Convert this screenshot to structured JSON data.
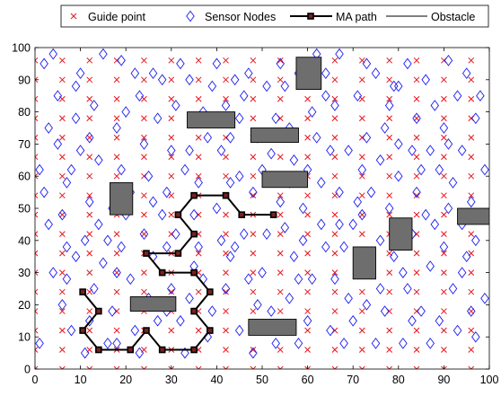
{
  "chart_data": {
    "type": "scatter",
    "xlim": [
      0,
      100
    ],
    "ylim": [
      0,
      100
    ],
    "xticks": [
      "0",
      "10",
      "20",
      "30",
      "40",
      "50",
      "60",
      "70",
      "80",
      "90",
      "100"
    ],
    "yticks": [
      "0",
      "10",
      "20",
      "30",
      "40",
      "50",
      "60",
      "70",
      "80",
      "90",
      "100"
    ],
    "grid": false,
    "legend_position": "top",
    "legend": [
      {
        "label": "Guide point",
        "marker": "x",
        "color": "#e8141b"
      },
      {
        "label": "Sensor Nodes",
        "marker": "diamond",
        "color": "#1c1cf0"
      },
      {
        "label": "MA path",
        "marker": "square-line",
        "color": "#000000"
      },
      {
        "label": "Obstacle",
        "marker": "line",
        "color": "#000000"
      }
    ],
    "guide_points_spacing": 6,
    "guide_points_color": "#e8141b",
    "sensor_color": "#1c1cf0",
    "obstacle_fill": "#6e6e6e",
    "obstacles": [
      {
        "x": [
          16.5,
          21.5
        ],
        "y": [
          48,
          58
        ]
      },
      {
        "x": [
          33.5,
          44
        ],
        "y": [
          75,
          80
        ]
      },
      {
        "x": [
          47.5,
          58
        ],
        "y": [
          70.5,
          75
        ]
      },
      {
        "x": [
          50,
          60
        ],
        "y": [
          56.5,
          61.5
        ]
      },
      {
        "x": [
          57.5,
          63
        ],
        "y": [
          87,
          97
        ]
      },
      {
        "x": [
          21,
          31
        ],
        "y": [
          18,
          22.5
        ]
      },
      {
        "x": [
          47,
          57.5
        ],
        "y": [
          10.5,
          15.5
        ]
      },
      {
        "x": [
          70,
          75
        ],
        "y": [
          28,
          38
        ]
      },
      {
        "x": [
          78,
          83
        ],
        "y": [
          37,
          47
        ]
      },
      {
        "x": [
          93,
          103
        ],
        "y": [
          45,
          50
        ]
      }
    ],
    "ma_path": [
      [
        10.5,
        24
      ],
      [
        14,
        18
      ],
      [
        10.5,
        12
      ],
      [
        14,
        6
      ],
      [
        21,
        6
      ],
      [
        24.5,
        12
      ],
      [
        28,
        6
      ],
      [
        35,
        6
      ],
      [
        38.5,
        12
      ],
      [
        35,
        18
      ],
      [
        38.5,
        24
      ],
      [
        35,
        30
      ],
      [
        28,
        30
      ],
      [
        24.5,
        36
      ],
      [
        31.5,
        36
      ],
      [
        35,
        42
      ],
      [
        31.5,
        48
      ],
      [
        35,
        54
      ],
      [
        42,
        54
      ],
      [
        45.5,
        48
      ],
      [
        52.5,
        48
      ]
    ],
    "sensor_nodes": [
      [
        2,
        95
      ],
      [
        5,
        70
      ],
      [
        9,
        88
      ],
      [
        12,
        52
      ],
      [
        15,
        33
      ],
      [
        18,
        75
      ],
      [
        22,
        12
      ],
      [
        25,
        60
      ],
      [
        28,
        90
      ],
      [
        31,
        42
      ],
      [
        34,
        22
      ],
      [
        37,
        80
      ],
      [
        40,
        50
      ],
      [
        43,
        35
      ],
      [
        46,
        85
      ],
      [
        49,
        20
      ],
      [
        52,
        67
      ],
      [
        55,
        44
      ],
      [
        58,
        8
      ],
      [
        61,
        28
      ],
      [
        64,
        92
      ],
      [
        67,
        55
      ],
      [
        70,
        15
      ],
      [
        73,
        72
      ],
      [
        76,
        40
      ],
      [
        79,
        88
      ],
      [
        82,
        25
      ],
      [
        85,
        62
      ],
      [
        88,
        45
      ],
      [
        91,
        96
      ],
      [
        94,
        30
      ],
      [
        97,
        78
      ],
      [
        3,
        45
      ],
      [
        6,
        20
      ],
      [
        8,
        62
      ],
      [
        11,
        5
      ],
      [
        13,
        82
      ],
      [
        16,
        40
      ],
      [
        19,
        96
      ],
      [
        21,
        28
      ],
      [
        24,
        70
      ],
      [
        27,
        15
      ],
      [
        29,
        55
      ],
      [
        32,
        95
      ],
      [
        35,
        48
      ],
      [
        38,
        10
      ],
      [
        41,
        68
      ],
      [
        44,
        38
      ],
      [
        47,
        92
      ],
      [
        50,
        30
      ],
      [
        53,
        78
      ],
      [
        56,
        22
      ],
      [
        59,
        50
      ],
      [
        62,
        72
      ],
      [
        65,
        12
      ],
      [
        68,
        38
      ],
      [
        71,
        85
      ],
      [
        74,
        55
      ],
      [
        77,
        18
      ],
      [
        80,
        70
      ],
      [
        83,
        42
      ],
      [
        86,
        90
      ],
      [
        89,
        15
      ],
      [
        92,
        58
      ],
      [
        95,
        35
      ],
      [
        98,
        85
      ],
      [
        1,
        8
      ],
      [
        4,
        30
      ],
      [
        7,
        58
      ],
      [
        10,
        92
      ],
      [
        14,
        65
      ],
      [
        17,
        18
      ],
      [
        20,
        48
      ],
      [
        23,
        85
      ],
      [
        26,
        35
      ],
      [
        30,
        68
      ],
      [
        33,
        5
      ],
      [
        36,
        58
      ],
      [
        39,
        88
      ],
      [
        42,
        25
      ],
      [
        45,
        60
      ],
      [
        48,
        5
      ],
      [
        51,
        42
      ],
      [
        54,
        95
      ],
      [
        57,
        35
      ],
      [
        60,
        62
      ],
      [
        63,
        45
      ],
      [
        66,
        82
      ],
      [
        69,
        22
      ],
      [
        72,
        62
      ],
      [
        75,
        92
      ],
      [
        78,
        50
      ],
      [
        81,
        8
      ],
      [
        84,
        78
      ],
      [
        87,
        32
      ],
      [
        90,
        75
      ],
      [
        93,
        12
      ],
      [
        96,
        52
      ],
      [
        99,
        22
      ],
      [
        2,
        55
      ],
      [
        5,
        85
      ],
      [
        8,
        12
      ],
      [
        11,
        40
      ],
      [
        15,
        98
      ],
      [
        18,
        30
      ],
      [
        21,
        55
      ],
      [
        24,
        42
      ],
      [
        27,
        78
      ],
      [
        30,
        25
      ],
      [
        33,
        62
      ],
      [
        36,
        38
      ],
      [
        39,
        18
      ],
      [
        42,
        82
      ],
      [
        45,
        12
      ],
      [
        48,
        55
      ],
      [
        51,
        88
      ],
      [
        54,
        52
      ],
      [
        57,
        65
      ],
      [
        60,
        15
      ],
      [
        63,
        58
      ],
      [
        66,
        28
      ],
      [
        69,
        68
      ],
      [
        72,
        48
      ],
      [
        75,
        8
      ],
      [
        78,
        82
      ],
      [
        81,
        30
      ],
      [
        84,
        55
      ],
      [
        87,
        68
      ],
      [
        90,
        38
      ],
      [
        93,
        85
      ],
      [
        96,
        18
      ],
      [
        99,
        62
      ],
      [
        3,
        75
      ],
      [
        6,
        48
      ],
      [
        9,
        35
      ],
      [
        12,
        72
      ],
      [
        16,
        8
      ],
      [
        19,
        62
      ],
      [
        22,
        92
      ],
      [
        25,
        22
      ],
      [
        28,
        48
      ],
      [
        31,
        82
      ],
      [
        34,
        68
      ],
      [
        37,
        28
      ],
      [
        40,
        95
      ],
      [
        43,
        58
      ],
      [
        46,
        42
      ],
      [
        49,
        72
      ],
      [
        52,
        18
      ],
      [
        55,
        88
      ],
      [
        58,
        28
      ],
      [
        61,
        80
      ],
      [
        64,
        38
      ],
      [
        67,
        98
      ],
      [
        70,
        45
      ],
      [
        73,
        20
      ],
      [
        76,
        65
      ],
      [
        79,
        35
      ],
      [
        82,
        95
      ],
      [
        85,
        18
      ],
      [
        88,
        82
      ],
      [
        91,
        50
      ],
      [
        94,
        68
      ],
      [
        97,
        40
      ],
      [
        4,
        98
      ],
      [
        7,
        38
      ],
      [
        10,
        68
      ],
      [
        13,
        25
      ],
      [
        17,
        50
      ],
      [
        20,
        80
      ],
      [
        23,
        5
      ],
      [
        26,
        92
      ],
      [
        29,
        38
      ],
      [
        32,
        15
      ],
      [
        38,
        72
      ],
      [
        41,
        40
      ],
      [
        44,
        90
      ],
      [
        47,
        28
      ],
      [
        50,
        62
      ],
      [
        53,
        8
      ],
      [
        56,
        75
      ],
      [
        59,
        40
      ],
      [
        62,
        98
      ],
      [
        65,
        68
      ],
      [
        68,
        8
      ],
      [
        71,
        52
      ],
      [
        74,
        32
      ],
      [
        77,
        75
      ],
      [
        80,
        60
      ],
      [
        83,
        15
      ],
      [
        86,
        48
      ],
      [
        89,
        62
      ],
      [
        92,
        25
      ],
      [
        95,
        92
      ],
      [
        98,
        48
      ],
      [
        1,
        62
      ],
      [
        9,
        78
      ],
      [
        14,
        45
      ],
      [
        19,
        38
      ],
      [
        26,
        52
      ],
      [
        34,
        90
      ],
      [
        43,
        72
      ],
      [
        56,
        58
      ],
      [
        67,
        45
      ],
      [
        76,
        25
      ],
      [
        87,
        8
      ],
      [
        94,
        45
      ],
      [
        97,
        10
      ],
      [
        12,
        15
      ],
      [
        35,
        32
      ],
      [
        64,
        85
      ],
      [
        80,
        88
      ],
      [
        91,
        70
      ],
      [
        58,
        92
      ],
      [
        45,
        78
      ],
      [
        29,
        18
      ],
      [
        18,
        8
      ],
      [
        7,
        28
      ],
      [
        83,
        68
      ],
      [
        73,
        95
      ]
    ]
  }
}
